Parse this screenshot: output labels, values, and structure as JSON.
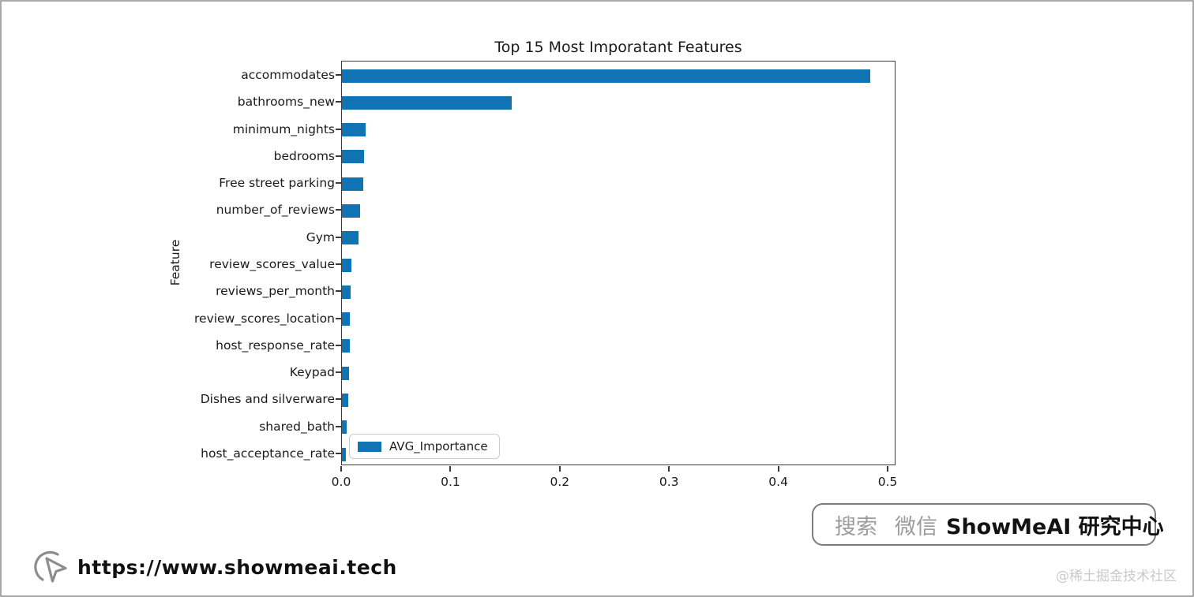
{
  "watermarks": {
    "url": "https://www.showmeai.tech",
    "community": "@稀土掘金技术社区"
  },
  "search_badge": {
    "search": "搜索",
    "wechat": "微信",
    "brand": "ShowMeAI 研究中心"
  },
  "chart_data": {
    "type": "bar",
    "orientation": "horizontal",
    "title": "Top 15 Most Imporatant Features",
    "ylabel": "Feature",
    "xlabel": "",
    "legend_label": "AVG_Importance",
    "legend_position": "lower left",
    "grid": false,
    "bar_color": "#0f73b4",
    "xlim": [
      0,
      0.5072
    ],
    "xticks": [
      0,
      0.1,
      0.2,
      0.3,
      0.4,
      0.5
    ],
    "categories": [
      "accommodates",
      "bathrooms_new",
      "minimum_nights",
      "bedrooms",
      "Free street parking",
      "number_of_reviews",
      "Gym",
      "review_scores_value",
      "reviews_per_month",
      "review_scores_location",
      "host_response_rate",
      "Keypad",
      "Dishes and silverware",
      "shared_bath",
      "host_acceptance_rate"
    ],
    "values": [
      0.483,
      0.155,
      0.022,
      0.02,
      0.0195,
      0.0165,
      0.0155,
      0.009,
      0.008,
      0.0075,
      0.007,
      0.0065,
      0.006,
      0.0045,
      0.0035
    ]
  }
}
